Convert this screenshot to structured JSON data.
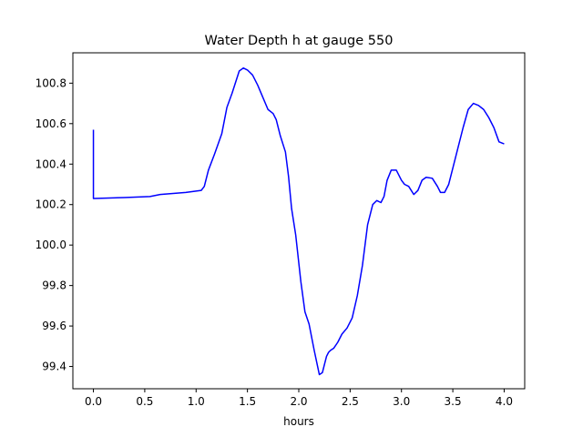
{
  "chart_data": {
    "type": "line",
    "title": "Water Depth h at gauge 550",
    "xlabel": "hours",
    "ylabel": "",
    "xlim": [
      -0.2,
      4.2
    ],
    "ylim": [
      99.29,
      100.95
    ],
    "xticks": [
      0.0,
      0.5,
      1.0,
      1.5,
      2.0,
      2.5,
      3.0,
      3.5,
      4.0
    ],
    "xtick_labels": [
      "0.0",
      "0.5",
      "1.0",
      "1.5",
      "2.0",
      "2.5",
      "3.0",
      "3.5",
      "4.0"
    ],
    "yticks": [
      99.4,
      99.6,
      99.8,
      100.0,
      100.2,
      100.4,
      100.6,
      100.8
    ],
    "ytick_labels": [
      "99.4",
      "99.6",
      "99.8",
      "100.0",
      "100.2",
      "100.4",
      "100.6",
      "100.8"
    ],
    "grid": false,
    "series": [
      {
        "color": "#0000ff",
        "x": [
          0.0,
          0.0,
          0.01,
          0.3,
          0.55,
          0.65,
          0.9,
          1.05,
          1.08,
          1.12,
          1.18,
          1.25,
          1.3,
          1.35,
          1.42,
          1.46,
          1.5,
          1.55,
          1.6,
          1.65,
          1.7,
          1.75,
          1.78,
          1.82,
          1.87,
          1.9,
          1.93,
          1.97,
          2.02,
          2.06,
          2.1,
          2.15,
          2.2,
          2.23,
          2.27,
          2.29,
          2.31,
          2.34,
          2.38,
          2.42,
          2.47,
          2.52,
          2.57,
          2.62,
          2.67,
          2.72,
          2.76,
          2.8,
          2.83,
          2.86,
          2.9,
          2.95,
          3.0,
          3.03,
          3.07,
          3.12,
          3.16,
          3.2,
          3.24,
          3.3,
          3.35,
          3.38,
          3.42,
          3.46,
          3.5,
          3.55,
          3.6,
          3.65,
          3.7,
          3.75,
          3.8,
          3.85,
          3.9,
          3.95,
          4.0
        ],
        "y": [
          100.57,
          100.23,
          100.23,
          100.235,
          100.24,
          100.25,
          100.26,
          100.27,
          100.29,
          100.37,
          100.45,
          100.55,
          100.68,
          100.75,
          100.86,
          100.875,
          100.865,
          100.84,
          100.79,
          100.73,
          100.67,
          100.65,
          100.62,
          100.54,
          100.46,
          100.34,
          100.18,
          100.05,
          99.82,
          99.67,
          99.61,
          99.48,
          99.36,
          99.37,
          99.45,
          99.47,
          99.48,
          99.49,
          99.52,
          99.56,
          99.59,
          99.64,
          99.75,
          99.9,
          100.1,
          100.2,
          100.22,
          100.21,
          100.24,
          100.32,
          100.37,
          100.37,
          100.32,
          100.3,
          100.29,
          100.25,
          100.27,
          100.32,
          100.335,
          100.33,
          100.29,
          100.26,
          100.26,
          100.3,
          100.38,
          100.48,
          100.58,
          100.67,
          100.7,
          100.69,
          100.67,
          100.63,
          100.58,
          100.51,
          100.5
        ]
      }
    ]
  }
}
